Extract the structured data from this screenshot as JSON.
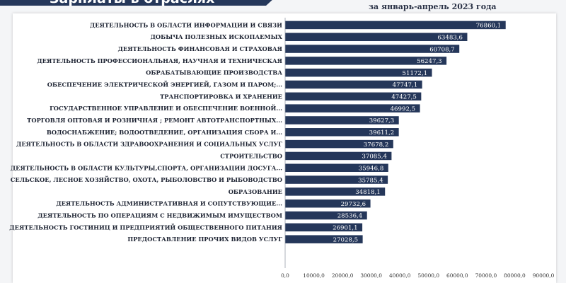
{
  "header": {
    "title": "Зарплаты в отраслях",
    "subtitle": "за январь-апрель 2023 года"
  },
  "colors": {
    "bar": "#25375a",
    "banner": "#25375a",
    "value_text": "#ffffff"
  },
  "chart_data": {
    "type": "bar",
    "orientation": "horizontal",
    "categories": [
      "ДЕЯТЕЛЬНОСТЬ В ОБЛАСТИ ИНФОРМАЦИИ И СВЯЗИ",
      "ДОБЫЧА ПОЛЕЗНЫХ ИСКОПАЕМЫХ",
      "ДЕЯТЕЛЬНОСТЬ ФИНАНСОВАЯ И СТРАХОВАЯ",
      "ДЕЯТЕЛЬНОСТЬ ПРОФЕССИОНАЛЬНАЯ, НАУЧНАЯ И ТЕХНИЧЕСКАЯ",
      "ОБРАБАТЫВАЮЩИЕ ПРОИЗВОДСТВА",
      "ОБЕСПЕЧЕНИЕ ЭЛЕКТРИЧЕСКОЙ ЭНЕРГИЕЙ, ГАЗОМ И ПАРОМ;...",
      "ТРАНСПОРТИРОВКА И ХРАНЕНИЕ",
      "ГОСУДАРСТВЕННОЕ УПРАВЛЕНИЕ И ОБЕСПЕЧЕНИЕ  ВОЕННОЙ...",
      "ТОРГОВЛЯ ОПТОВАЯ И РОЗНИЧНАЯ ; РЕМОНТ  АВТОТРАНСПОРТНЫХ...",
      "ВОДОСНАБЖЕНИЕ; ВОДООТВЕДЕНИЕ, ОРГАНИЗАЦИЯ СБОРА И...",
      "ДЕЯТЕЛЬНОСТЬ В ОБЛАСТИ ЗДРАВООХРАНЕНИЯ И СОЦИАЛЬНЫХ  УСЛУГ",
      "СТРОИТЕЛЬСТВО",
      "ДЕЯТЕЛЬНОСТЬ В ОБЛАСТИ КУЛЬТУРЫ,СПОРТА, ОРГАНИЗАЦИИ ДОСУГА...",
      "СЕЛЬСКОЕ, ЛЕСНОЕ ХОЗЯЙСТВО, ОХОТА, РЫБОЛОВСТВО И РЫБОВОДСТВО",
      "ОБРАЗОВАНИЕ",
      "ДЕЯТЕЛЬНОСТЬ АДМИНИСТРАТИВНАЯ И СОПУТСТВУЮЩИЕ...",
      "ДЕЯТЕЛЬНОСТЬ ПО ОПЕРАЦИЯМ С НЕДВИЖИМЫМ ИМУЩЕСТВОМ",
      "ДЕЯТЕЛЬНОСТЬ ГОСТИНИЦ И ПРЕДПРИЯТИЙ ОБЩЕСТВЕННОГО ПИТАНИЯ",
      "ПРЕДОСТАВЛЕНИЕ ПРОЧИХ ВИДОВ УСЛУГ"
    ],
    "values": [
      76860.1,
      63483.6,
      60708.7,
      56247.3,
      51172.1,
      47747.1,
      47427.5,
      46992.5,
      39627.3,
      39611.2,
      37678.2,
      37085.4,
      35946.8,
      35785.4,
      34818.1,
      29732.6,
      28536.4,
      26901.1,
      27028.5
    ],
    "value_labels": [
      "76860,1",
      "63483,6",
      "60708,7",
      "56247,3",
      "51172,1",
      "47747,1",
      "47427,5",
      "46992,5",
      "39627,3",
      "39611,2",
      "37678,2",
      "37085,4",
      "35946,8",
      "35785,4",
      "34818,1",
      "29732,6",
      "28536,4",
      "26901,1",
      "27028,5"
    ],
    "xlim": [
      0,
      90000
    ],
    "x_ticks": [
      "0,0",
      "10000,0",
      "20000,0",
      "30000,0",
      "40000,0",
      "50000,0",
      "60000,0",
      "70000,0",
      "80000,0",
      "90000,0"
    ],
    "grid": false,
    "legend": "none"
  }
}
